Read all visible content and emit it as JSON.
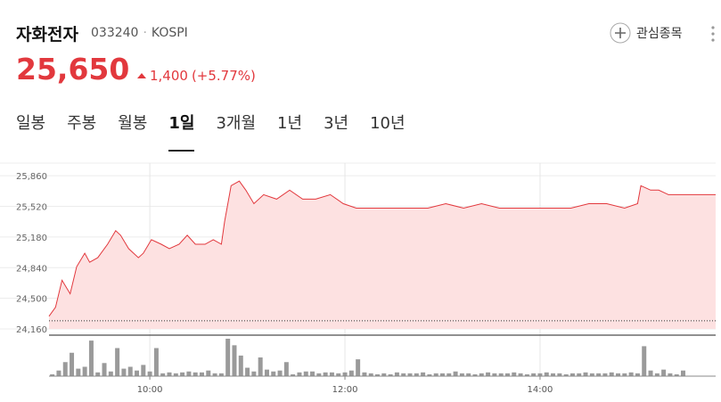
{
  "header": {
    "name": "자화전자",
    "code": "033240",
    "market": "KOSPI",
    "price": "25,650",
    "change": "1,400",
    "change_pct": "(+5.77%)",
    "watchlist": "관심종목"
  },
  "tabs": {
    "items": [
      "일봉",
      "주봉",
      "월봉",
      "1일",
      "3개월",
      "1년",
      "3년",
      "10년"
    ],
    "active": 3
  },
  "chart_data": {
    "type": "line",
    "x": [
      538,
      542,
      546,
      551,
      555,
      560,
      563,
      568,
      574,
      579,
      582,
      587,
      593,
      596,
      601,
      607,
      612,
      618,
      623,
      628,
      634,
      639,
      644,
      646,
      650,
      655,
      659,
      664,
      670,
      678,
      686,
      694,
      702,
      711,
      719,
      727,
      738,
      749,
      760,
      771,
      782,
      793,
      804,
      815,
      826,
      837,
      848,
      859,
      870,
      881,
      892,
      900,
      902,
      908,
      913,
      919,
      948
    ],
    "series": [
      {
        "color": "#e2383d",
        "fill": "#fde1e1",
        "values": [
          24300,
          24400,
          24700,
          24550,
          24850,
          25000,
          24900,
          24950,
          25100,
          25250,
          25200,
          25050,
          24950,
          25000,
          25150,
          25100,
          25050,
          25100,
          25200,
          25100,
          25100,
          25150,
          25100,
          25350,
          25750,
          25800,
          25700,
          25550,
          25650,
          25600,
          25700,
          25600,
          25600,
          25650,
          25550,
          25500,
          25500,
          25500,
          25500,
          25500,
          25550,
          25500,
          25550,
          25500,
          25500,
          25500,
          25500,
          25500,
          25550,
          25550,
          25500,
          25550,
          25750,
          25700,
          25700,
          25650,
          25650
        ]
      }
    ],
    "baseline": 24250,
    "xlim": [
      538,
      948
    ],
    "ylim": [
      24160,
      26000
    ],
    "yticks": [
      {
        "value": 24160,
        "label": "24,160"
      },
      {
        "value": 24500,
        "label": "24,500"
      },
      {
        "value": 24840,
        "label": "24,840"
      },
      {
        "value": 25180,
        "label": "25,180"
      },
      {
        "value": 25520,
        "label": "25,520"
      },
      {
        "value": 25860,
        "label": "25,860"
      }
    ],
    "xticks": [
      {
        "value": 600,
        "label": "10:00"
      },
      {
        "value": 720,
        "label": "12:00"
      },
      {
        "value": 840,
        "label": "14:00"
      }
    ],
    "grid": true,
    "volume": {
      "color": "#9a9a9a",
      "x": [
        540,
        544,
        548,
        552,
        556,
        560,
        564,
        568,
        572,
        576,
        580,
        584,
        588,
        592,
        596,
        600,
        604,
        608,
        612,
        616,
        620,
        624,
        628,
        632,
        636,
        640,
        644,
        648,
        652,
        656,
        660,
        664,
        668,
        672,
        676,
        680,
        684,
        688,
        692,
        696,
        700,
        704,
        708,
        712,
        716,
        720,
        724,
        728,
        732,
        736,
        740,
        744,
        748,
        752,
        756,
        760,
        764,
        768,
        772,
        776,
        780,
        784,
        788,
        792,
        796,
        800,
        804,
        808,
        812,
        816,
        820,
        824,
        828,
        832,
        836,
        840,
        844,
        848,
        852,
        856,
        860,
        864,
        868,
        872,
        876,
        880,
        884,
        888,
        892,
        896,
        900,
        904,
        908,
        912,
        916,
        920,
        924,
        928
      ],
      "values": [
        2,
        6,
        15,
        25,
        8,
        10,
        38,
        4,
        14,
        5,
        30,
        8,
        10,
        6,
        12,
        5,
        30,
        3,
        4,
        3,
        4,
        5,
        4,
        4,
        6,
        3,
        3,
        40,
        33,
        22,
        9,
        5,
        20,
        7,
        5,
        6,
        15,
        2,
        4,
        5,
        5,
        3,
        4,
        4,
        3,
        4,
        6,
        18,
        4,
        3,
        2,
        3,
        2,
        4,
        3,
        3,
        3,
        4,
        2,
        3,
        3,
        3,
        5,
        3,
        3,
        2,
        3,
        4,
        3,
        3,
        3,
        4,
        3,
        2,
        3,
        3,
        4,
        3,
        3,
        2,
        3,
        3,
        4,
        3,
        3,
        3,
        4,
        3,
        3,
        4,
        3,
        32,
        6,
        3,
        7,
        3,
        2,
        6
      ]
    }
  }
}
